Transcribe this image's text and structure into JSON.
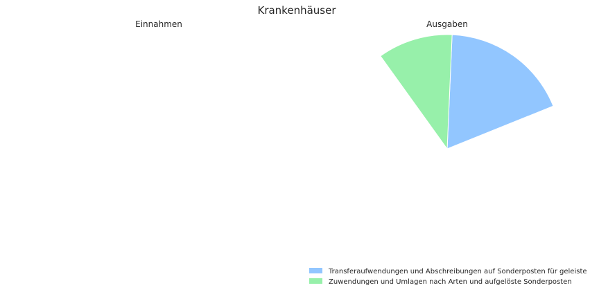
{
  "figure": {
    "title": "Krankenhäuser"
  },
  "chart_data": [
    {
      "type": "pie",
      "title": "Einnahmen",
      "categories": [],
      "values": [],
      "colors": []
    },
    {
      "type": "pie",
      "title": "Ausgaben",
      "categories": [
        "Transferaufwendungen und Abschreibungen auf Sonderposten für geleiste",
        "Zuwendungen und Umlagen nach Arten und aufgelöste Sonderposten"
      ],
      "values": [
        18.2,
        10.6
      ],
      "start_angle_deg": 90,
      "direction": "clockwise_from_north_shown_as_counterclockwise",
      "note_visible": "",
      "colors": [
        "#92c6ff",
        "#97f0aa"
      ]
    }
  ],
  "legend": {
    "placement": "bottom-right",
    "items": [
      {
        "label": "Transferaufwendungen und Abschreibungen auf Sonderposten für geleiste",
        "color": "#92c6ff"
      },
      {
        "label": "Zuwendungen und Umlagen nach Arten und aufgelöste Sonderposten",
        "color": "#97f0aa"
      }
    ]
  }
}
